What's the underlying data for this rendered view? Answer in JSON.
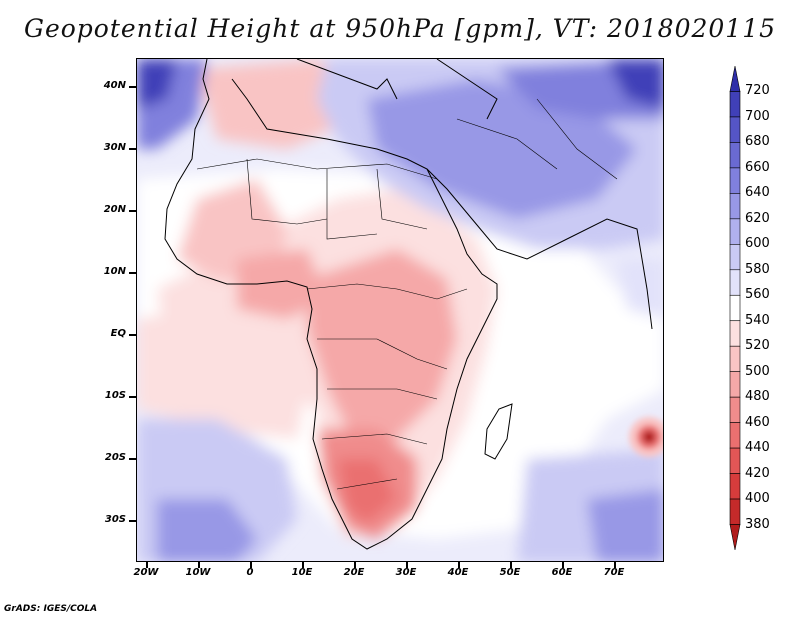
{
  "title": "Geopotential Height at 950hPa [gpm], VT: 2018020115",
  "latitude_labels": [
    "40N",
    "30N",
    "20N",
    "10N",
    "EQ",
    "10S",
    "20S",
    "30S"
  ],
  "longitude_labels": [
    "20W",
    "10W",
    "0",
    "10E",
    "20E",
    "30E",
    "40E",
    "50E",
    "60E",
    "70E"
  ],
  "colorbar": {
    "levels": [
      "720",
      "700",
      "680",
      "660",
      "640",
      "620",
      "600",
      "580",
      "560",
      "540",
      "520",
      "500",
      "480",
      "460",
      "440",
      "420",
      "400",
      "380"
    ],
    "colors_low_to_high": [
      "#b01c1c",
      "#c42a2a",
      "#d63c3c",
      "#e25656",
      "#ea7070",
      "#f08c8c",
      "#f5a8a8",
      "#f9c4c4",
      "#fce0e0",
      "#ffffff",
      "#e2e2fa",
      "#cacaf4",
      "#b0b0ee",
      "#9898e6",
      "#8080dd",
      "#6a6ad2",
      "#5555c6",
      "#4040b8",
      "#2e2ea8"
    ]
  },
  "credit": "GrADS: IGES/COLA"
}
